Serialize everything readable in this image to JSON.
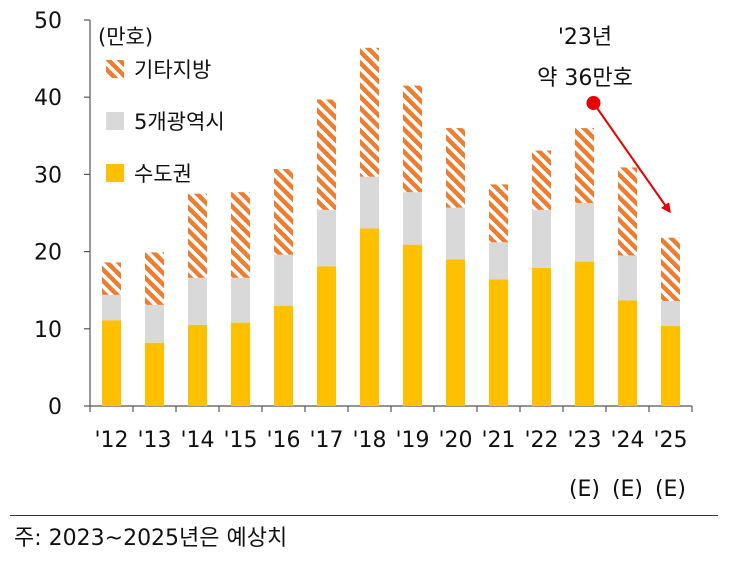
{
  "chart_data": {
    "type": "bar",
    "stacked": true,
    "categories": [
      "'12",
      "'13",
      "'14",
      "'15",
      "'16",
      "'17",
      "'18",
      "'19",
      "'20",
      "'21",
      "'22",
      "'23",
      "'24",
      "'25"
    ],
    "sublabels": [
      "",
      "",
      "",
      "",
      "",
      "",
      "",
      "",
      "",
      "",
      "",
      "(E)",
      "(E)",
      "(E)"
    ],
    "unit_label": "(만호)",
    "ylim": [
      0,
      50
    ],
    "yticks": [
      0,
      10,
      20,
      30,
      40,
      50
    ],
    "series": [
      {
        "name": "수도권",
        "color": "#FFC000",
        "pattern": "solid",
        "values": [
          11.1,
          8.2,
          10.5,
          10.8,
          13.0,
          18.1,
          23.0,
          20.9,
          19.0,
          16.4,
          17.9,
          18.7,
          13.7,
          10.4
        ]
      },
      {
        "name": "5개광역시",
        "color": "#D9D9D9",
        "pattern": "solid",
        "values": [
          3.3,
          4.9,
          6.1,
          5.8,
          6.6,
          7.3,
          6.7,
          6.8,
          6.7,
          4.8,
          7.5,
          7.6,
          5.8,
          3.2
        ]
      },
      {
        "name": "기타지방",
        "color": "#ED7D31",
        "pattern": "hatch",
        "values": [
          4.2,
          6.8,
          10.9,
          11.1,
          11.1,
          14.3,
          16.7,
          13.8,
          10.3,
          7.5,
          7.7,
          9.7,
          11.4,
          8.2
        ]
      }
    ],
    "legend_order": [
      "기타지방",
      "5개광역시",
      "수도권"
    ],
    "legend_position": "top-left",
    "annotation": {
      "line1": "'23년",
      "line2": "약 36만호",
      "from_category": "'23",
      "to_category": "'25",
      "color": "#E60000"
    },
    "grid": false
  },
  "footnote": "주: 2023~2025년은 예상치"
}
